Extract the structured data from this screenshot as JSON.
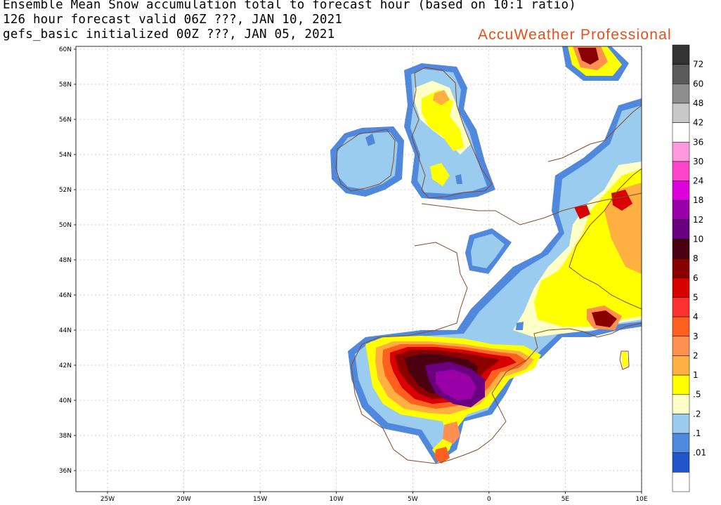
{
  "header": {
    "line1": "Ensemble Mean Snow accumulation total to forecast hour (based on 10:1 ratio)",
    "line2": "126 hour forecast valid 06Z ???, JAN 10, 2021",
    "line3": "gefs_basic initialized 00Z ???, JAN 05, 2021",
    "brand": "AccuWeather Professional"
  },
  "axes": {
    "lat_labels": [
      "60N",
      "58N",
      "56N",
      "54N",
      "52N",
      "50N",
      "48N",
      "46N",
      "44N",
      "42N",
      "40N",
      "38N",
      "36N"
    ],
    "lon_labels": [
      "25W",
      "20W",
      "15W",
      "10W",
      "5W",
      "0",
      "5E",
      "10E"
    ]
  },
  "legend": {
    "levels": [
      {
        "label": "72",
        "color": "#333333"
      },
      {
        "label": "60",
        "color": "#5a5a5a"
      },
      {
        "label": "48",
        "color": "#8e8e8e"
      },
      {
        "label": "42",
        "color": "#c8c8c8"
      },
      {
        "label": "36",
        "color": "#ffffff"
      },
      {
        "label": "30",
        "color": "#ff99dd"
      },
      {
        "label": "24",
        "color": "#ff44cc"
      },
      {
        "label": "18",
        "color": "#dd00dd"
      },
      {
        "label": "12",
        "color": "#9a00a8"
      },
      {
        "label": "10",
        "color": "#6a0080"
      },
      {
        "label": "8",
        "color": "#4a0010"
      },
      {
        "label": "6",
        "color": "#8a0000"
      },
      {
        "label": "5",
        "color": "#d80000"
      },
      {
        "label": "4",
        "color": "#ff3030"
      },
      {
        "label": "3",
        "color": "#ff6020"
      },
      {
        "label": "2",
        "color": "#ff9050"
      },
      {
        "label": "1",
        "color": "#ffb040"
      },
      {
        "label": ".5",
        "color": "#ffff00"
      },
      {
        "label": ".2",
        "color": "#ffffc8"
      },
      {
        "label": ".1",
        "color": "#99ccee"
      },
      {
        "label": ".01",
        "color": "#5088dd"
      }
    ],
    "bottom_colors": [
      "#2255cc",
      "#ffffff"
    ]
  },
  "map_colors": {
    "coast": "#8a4a2a",
    "grid": "#aaaaaa"
  }
}
